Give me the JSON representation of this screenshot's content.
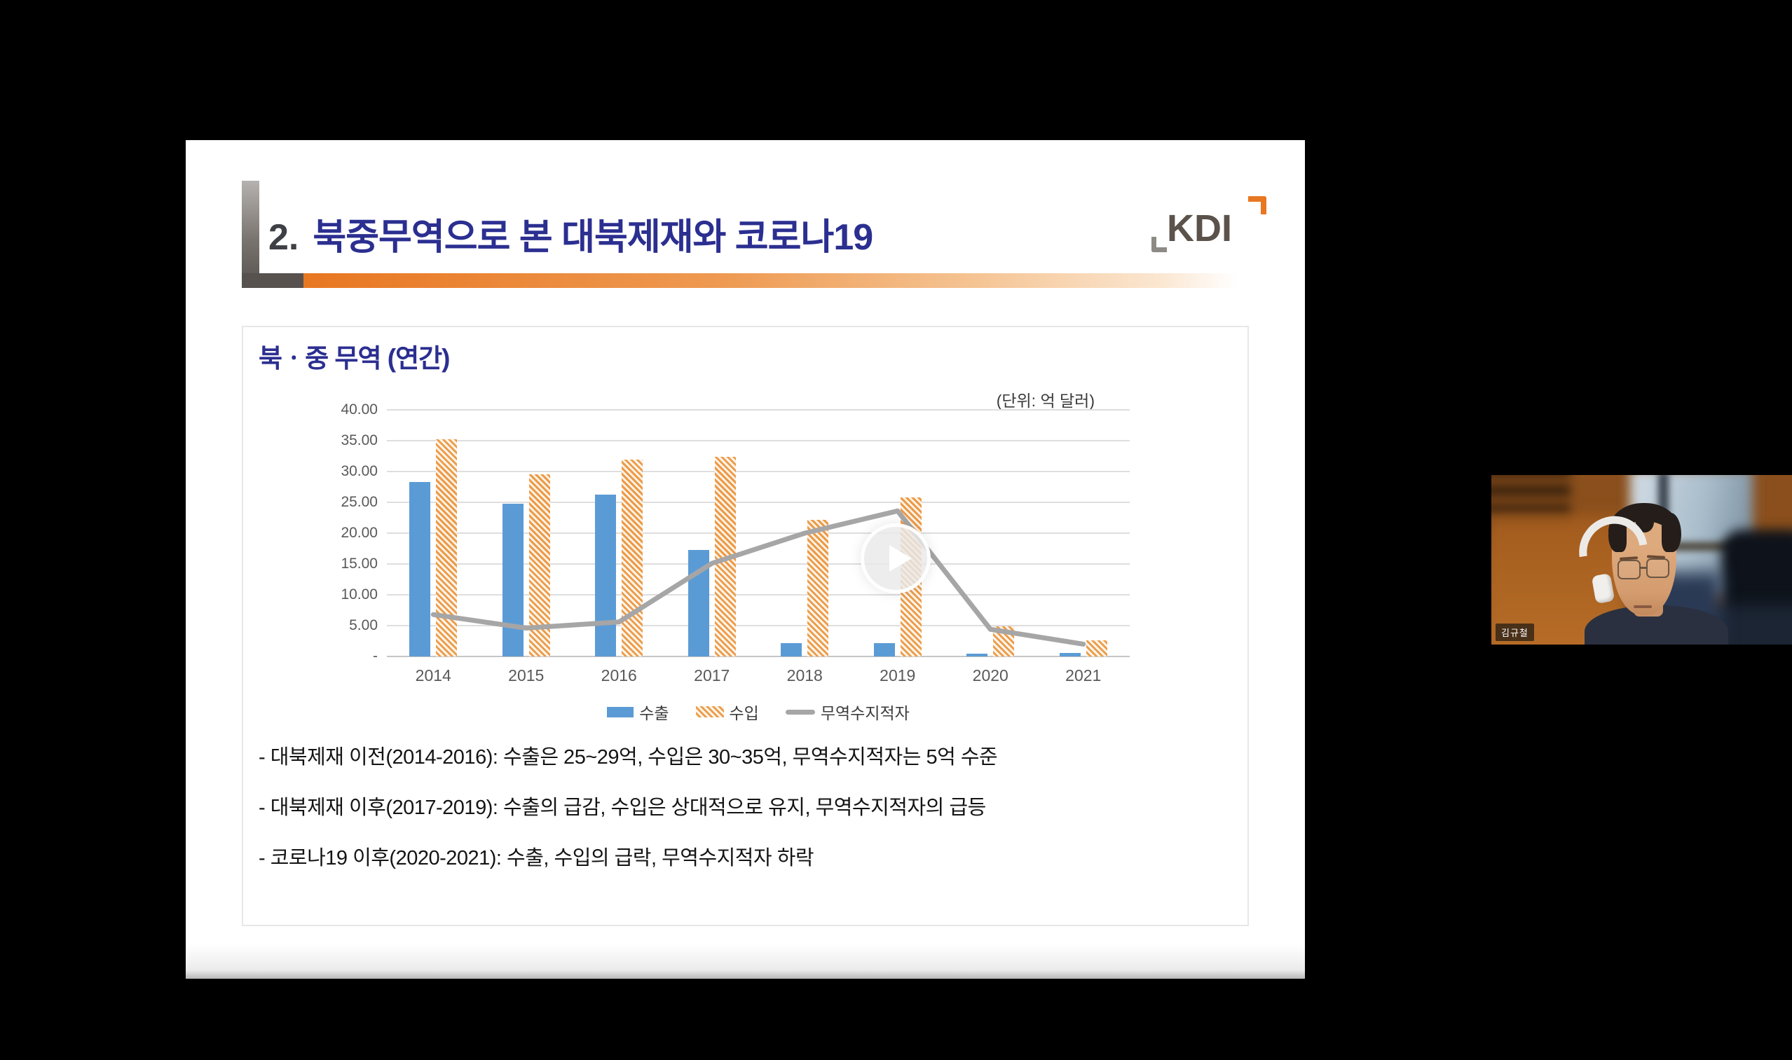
{
  "slide": {
    "title_number": "2.",
    "title": "북중무역으로 본 대북제재와 코로나19",
    "section_heading": "북ㆍ중 무역 (연간)",
    "unit_label": "(단위: 억 달러)",
    "bullets": [
      "- 대북제재 이전(2014-2016): 수출은 25~29억, 수입은 30~35억, 무역수지적자는 5억 수준",
      "- 대북제재 이후(2017-2019): 수출의 급감, 수입은 상대적으로 유지, 무역수지적자의 급등",
      "- 코로나19 이후(2020-2021): 수출, 수입의 급락, 무역수지적자 하락"
    ],
    "colors": {
      "title_blue": "#2b2f90",
      "accent_orange": "#e87722",
      "bracket_gray": "#57524e"
    }
  },
  "logo": {
    "text": "KDI"
  },
  "chart_data": {
    "type": "bar",
    "title": "북ㆍ중 무역 (연간)",
    "unit": "억 달러",
    "categories": [
      "2014",
      "2015",
      "2016",
      "2017",
      "2018",
      "2019",
      "2020",
      "2021"
    ],
    "series": [
      {
        "name": "수출",
        "kind": "bar",
        "pattern": "solid",
        "color": "#5b9bd5",
        "values": [
          28.3,
          24.8,
          26.3,
          17.3,
          2.2,
          2.2,
          0.5,
          0.6
        ]
      },
      {
        "name": "수입",
        "kind": "bar",
        "pattern": "hatched",
        "color": "#ec9b49",
        "values": [
          35.2,
          29.5,
          31.9,
          32.4,
          22.2,
          25.8,
          4.9,
          2.6
        ]
      },
      {
        "name": "무역수지적자",
        "kind": "line",
        "pattern": "solid",
        "color": "#a6a6a6",
        "values": [
          6.8,
          4.6,
          5.6,
          15.1,
          20.0,
          23.6,
          4.4,
          2.0
        ]
      }
    ],
    "ylim": [
      0,
      40
    ],
    "ytick_step": 5,
    "ytick_labels": [
      "40.00",
      "35.00",
      "30.00",
      "25.00",
      "20.00",
      "15.00",
      "10.00",
      "5.00",
      "-"
    ],
    "grid": true,
    "legend_position": "bottom"
  },
  "video_overlay": {
    "play_label": "play"
  },
  "webcam": {
    "name_tag": "김규철"
  }
}
